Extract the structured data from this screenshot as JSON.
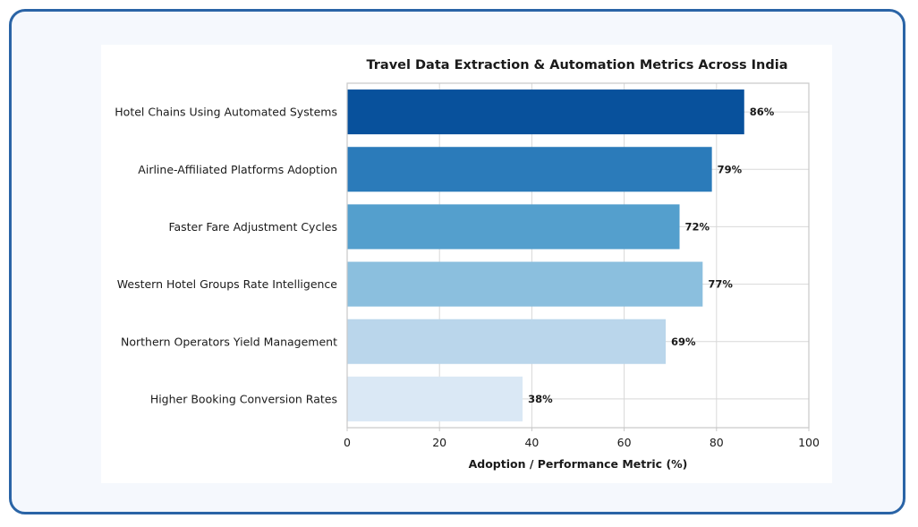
{
  "chart_data": {
    "type": "bar",
    "orientation": "horizontal",
    "title": "Travel Data Extraction & Automation Metrics Across India",
    "xlabel": "Adoption / Performance Metric (%)",
    "ylabel": "",
    "xlim": [
      0,
      100
    ],
    "xticks": [
      "0",
      "20",
      "40",
      "60",
      "80",
      "100"
    ],
    "grid": true,
    "categories": [
      "Hotel Chains Using Automated Systems",
      "Airline-Affiliated Platforms Adoption",
      "Faster Fare Adjustment Cycles",
      "Western Hotel Groups Rate Intelligence",
      "Northern Operators Yield Management",
      "Higher Booking Conversion Rates"
    ],
    "values": [
      86,
      79,
      72,
      77,
      69,
      38
    ],
    "value_labels": [
      "86%",
      "79%",
      "72%",
      "77%",
      "69%",
      "38%"
    ],
    "colors": [
      "#08519c",
      "#2b7bba",
      "#549fcd",
      "#8bbfde",
      "#bad6eb",
      "#dae8f5"
    ]
  },
  "colors": {
    "frame_border": "#2a64a6",
    "frame_background": "#f5f8fd",
    "grid": "#d3d3d3",
    "axis": "#c8c8c8",
    "text": "#1a1a1a"
  }
}
